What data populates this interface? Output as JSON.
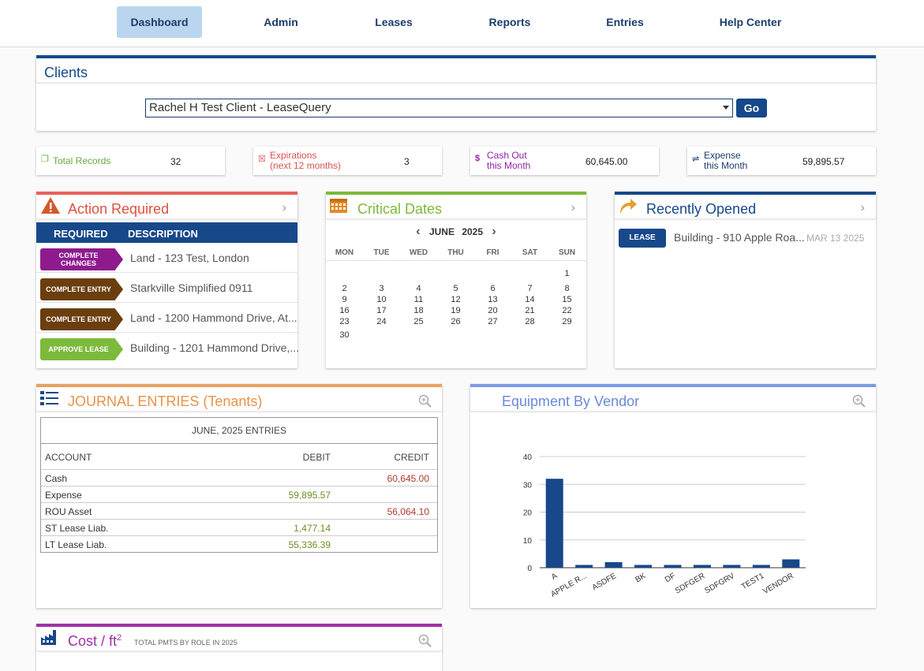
{
  "nav": {
    "items": [
      "Dashboard",
      "Admin",
      "Leases",
      "Reports",
      "Entries",
      "Help Center"
    ]
  },
  "clients": {
    "title": "Clients",
    "selected": "Rachel H Test Client - LeaseQuery",
    "go_label": "Go"
  },
  "stats": [
    {
      "icon": "copy-icon",
      "label_line1": "Total Records",
      "label_line2": "",
      "value": "32",
      "color": "#6aa842"
    },
    {
      "icon": "calendar-x-icon",
      "label_line1": "Expirations",
      "label_line2": "(next 12 months)",
      "value": "3",
      "color": "#d9534f"
    },
    {
      "icon": "dollar-icon",
      "label_line1": "Cash Out",
      "label_line2": "this Month",
      "value": "60,645.00",
      "color": "#8e24aa"
    },
    {
      "icon": "expense-icon",
      "label_line1": "Expense",
      "label_line2": "this Month",
      "value": "59,895.57",
      "color": "#1c3d6b"
    }
  ],
  "action_required": {
    "title": "Action Required",
    "header_required": "REQUIRED",
    "header_description": "DESCRIPTION",
    "rows": [
      {
        "tag": "COMPLETE CHANGES",
        "tag_color": "#8e1a8e",
        "description": "Land - 123 Test, London"
      },
      {
        "tag": "COMPLETE ENTRY",
        "tag_color": "#6b3e0f",
        "description": "Starkville Simplified 0911"
      },
      {
        "tag": "COMPLETE ENTRY",
        "tag_color": "#6b3e0f",
        "description": "Land - 1200 Hammond Drive, At..."
      },
      {
        "tag": "APPROVE LEASE",
        "tag_color": "#7cba3b",
        "description": "Building - 1201 Hammond Drive,..."
      }
    ]
  },
  "critical_dates": {
    "title": "Critical Dates",
    "month": "JUNE",
    "year": "2025",
    "days_of_week": [
      "MON",
      "TUE",
      "WED",
      "THU",
      "FRI",
      "SAT",
      "SUN"
    ],
    "weeks": [
      [
        "",
        "",
        "",
        "",
        "",
        "",
        "1"
      ],
      [
        "2",
        "3",
        "4",
        "5",
        "6",
        "7",
        "8"
      ],
      [
        "9",
        "10",
        "11",
        "12",
        "13",
        "14",
        "15"
      ],
      [
        "16",
        "17",
        "18",
        "19",
        "20",
        "21",
        "22"
      ],
      [
        "23",
        "24",
        "25",
        "26",
        "27",
        "28",
        "29"
      ],
      [
        "30",
        "",
        "",
        "",
        "",
        "",
        ""
      ]
    ]
  },
  "recently_opened": {
    "title": "Recently Opened",
    "items": [
      {
        "tag": "LEASE",
        "name": "Building - 910 Apple Roa...",
        "date": "MAR 13 2025"
      }
    ]
  },
  "journal": {
    "title": "JOURNAL ENTRIES (Tenants)",
    "period": "JUNE, 2025 ENTRIES",
    "col_account": "ACCOUNT",
    "col_debit": "DEBIT",
    "col_credit": "CREDIT",
    "rows": [
      {
        "account": "Cash",
        "debit": "",
        "credit": "60,645.00"
      },
      {
        "account": "Expense",
        "debit": "59,895.57",
        "credit": ""
      },
      {
        "account": "ROU Asset",
        "debit": "",
        "credit": "56,064.10"
      },
      {
        "account": "ST Lease Liab.",
        "debit": "1,477.14",
        "credit": ""
      },
      {
        "account": "LT Lease Liab.",
        "debit": "55,336.39",
        "credit": ""
      }
    ]
  },
  "equipment": {
    "title": "Equipment By Vendor"
  },
  "chart_data": {
    "type": "bar",
    "categories": [
      "A",
      "APPLE R...",
      "ASDFE",
      "BK",
      "DF",
      "SDFGER",
      "SDFGRV",
      "TEST1",
      "VENDOR"
    ],
    "values": [
      32,
      1,
      2,
      1,
      1,
      1,
      1,
      1,
      3
    ],
    "ylim": [
      0,
      40
    ],
    "yticks": [
      0,
      10,
      20,
      30,
      40
    ],
    "grid": true,
    "color": "#16488a"
  },
  "cost": {
    "title": "Cost / ft",
    "sup": "2",
    "subtitle": "TOTAL PMTS BY ROLE IN 2025"
  }
}
